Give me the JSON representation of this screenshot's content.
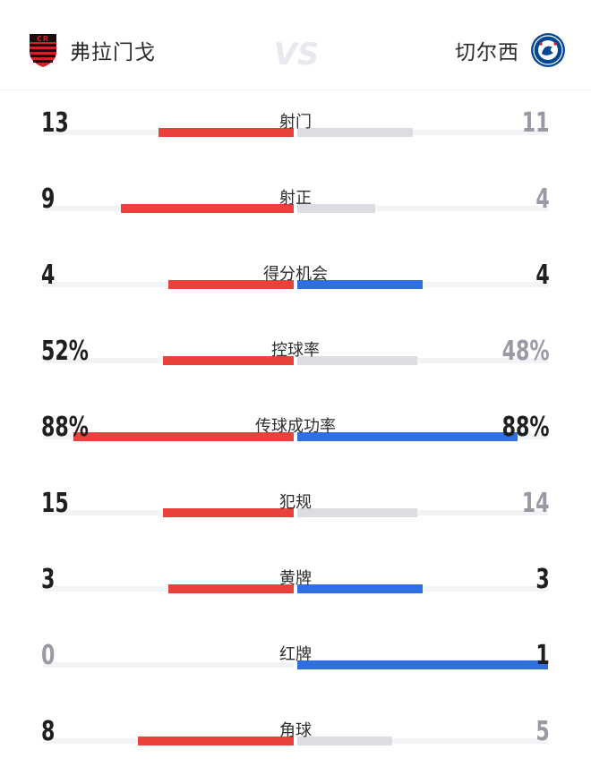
{
  "header": {
    "home_team": "弗拉门戈",
    "away_team": "切尔西",
    "vs": "VS"
  },
  "colors": {
    "home": "#e9413c",
    "away": "#2f6fe4",
    "loser_bar": "#dcdde2",
    "loser_text": "#9a9aa6",
    "winner_text": "#1f1f1f",
    "track": "#f2f3f5"
  },
  "stats": [
    {
      "label": "射门",
      "home": "13",
      "away": "11",
      "home_frac": 0.54,
      "away_frac": 0.46
    },
    {
      "label": "射正",
      "home": "9",
      "away": "4",
      "home_frac": 0.69,
      "away_frac": 0.31
    },
    {
      "label": "得分机会",
      "home": "4",
      "away": "4",
      "home_frac": 0.5,
      "away_frac": 0.5
    },
    {
      "label": "控球率",
      "home": "52%",
      "away": "48%",
      "home_frac": 0.52,
      "away_frac": 0.48
    },
    {
      "label": "传球成功率",
      "home": "88%",
      "away": "88%",
      "home_frac": 0.88,
      "away_frac": 0.88
    },
    {
      "label": "犯规",
      "home": "15",
      "away": "14",
      "home_frac": 0.52,
      "away_frac": 0.48
    },
    {
      "label": "黄牌",
      "home": "3",
      "away": "3",
      "home_frac": 0.5,
      "away_frac": 0.5
    },
    {
      "label": "红牌",
      "home": "0",
      "away": "1",
      "home_frac": 0.0,
      "away_frac": 1.0
    },
    {
      "label": "角球",
      "home": "8",
      "away": "5",
      "home_frac": 0.62,
      "away_frac": 0.38
    }
  ]
}
